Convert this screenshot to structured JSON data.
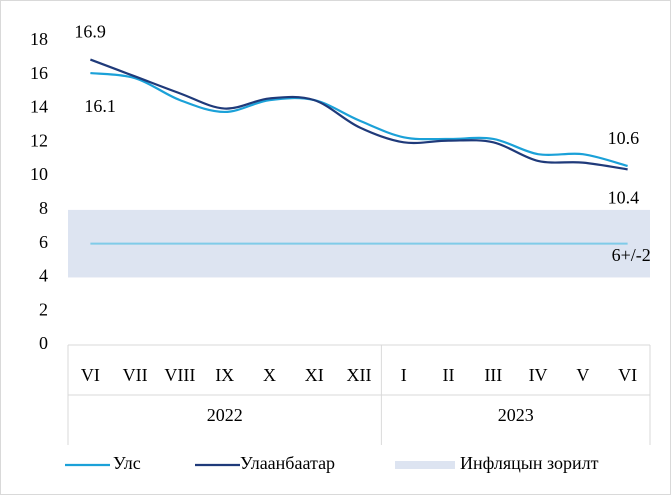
{
  "chart_data": {
    "type": "line",
    "categories": [
      "VI",
      "VII",
      "VIII",
      "IX",
      "X",
      "XI",
      "XII",
      "I",
      "II",
      "III",
      "IV",
      "V",
      "VI"
    ],
    "groups": [
      {
        "label": "2022",
        "span": 7
      },
      {
        "label": "2023",
        "span": 6
      }
    ],
    "series": [
      {
        "name": "Улс",
        "color": "#1ba1d8",
        "values": [
          16.1,
          15.8,
          14.5,
          13.8,
          14.5,
          14.5,
          13.3,
          12.3,
          12.2,
          12.2,
          11.3,
          11.3,
          10.6
        ]
      },
      {
        "name": "Улаанбаатар",
        "color": "#1f3a7a",
        "values": [
          16.9,
          15.9,
          14.9,
          14.0,
          14.6,
          14.5,
          12.9,
          12.0,
          12.1,
          12.0,
          10.9,
          10.8,
          10.4
        ]
      }
    ],
    "target": {
      "name": "Инфляцын зорилт",
      "low": 4,
      "high": 8,
      "center": 6,
      "label": "6+/-2",
      "color": "#dde4f1",
      "line_color": "#7fcbe8"
    },
    "ylim": [
      0,
      18
    ],
    "yticks": [
      0,
      2,
      4,
      6,
      8,
      10,
      12,
      14,
      16,
      18
    ]
  }
}
